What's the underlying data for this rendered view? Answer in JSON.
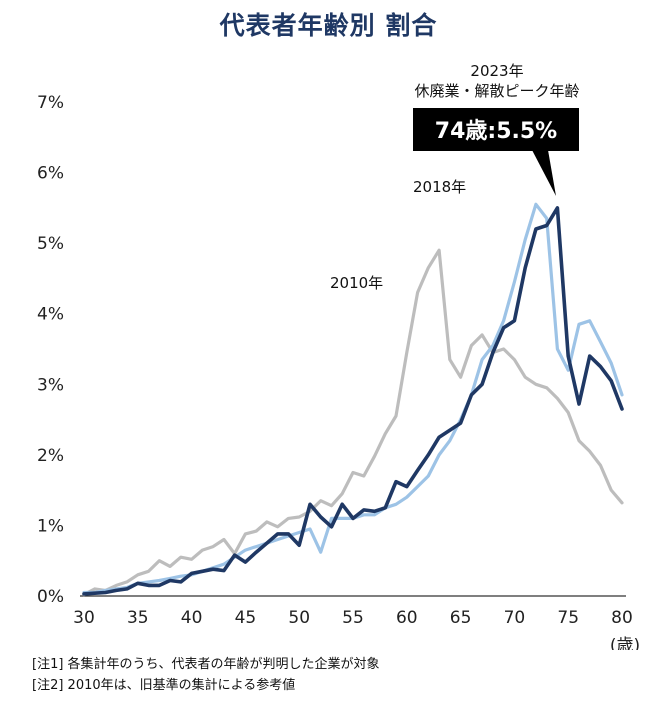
{
  "title": "代表者年齢別  割合",
  "chart_data": {
    "type": "line",
    "title": "代表者年齢別  割合",
    "xlabel": "(歳)",
    "ylabel": "",
    "xlim": [
      30,
      80
    ],
    "ylim": [
      0,
      7
    ],
    "x_ticks": [
      "30",
      "35",
      "40",
      "45",
      "50",
      "55",
      "60",
      "65",
      "70",
      "75",
      "80"
    ],
    "y_ticks": [
      "0%",
      "1%",
      "2%",
      "3%",
      "4%",
      "5%",
      "6%",
      "7%"
    ],
    "x": [
      30,
      31,
      32,
      33,
      34,
      35,
      36,
      37,
      38,
      39,
      40,
      41,
      42,
      43,
      44,
      45,
      46,
      47,
      48,
      49,
      50,
      51,
      52,
      53,
      54,
      55,
      56,
      57,
      58,
      59,
      60,
      61,
      62,
      63,
      64,
      65,
      66,
      67,
      68,
      69,
      70,
      71,
      72,
      73,
      74,
      75,
      76,
      77,
      78,
      79,
      80
    ],
    "series": [
      {
        "name": "2010年",
        "color": "#bdbdbd",
        "values": [
          0.02,
          0.1,
          0.08,
          0.15,
          0.2,
          0.3,
          0.35,
          0.5,
          0.42,
          0.55,
          0.52,
          0.65,
          0.7,
          0.8,
          0.6,
          0.88,
          0.92,
          1.05,
          0.98,
          1.1,
          1.12,
          1.2,
          1.35,
          1.28,
          1.45,
          1.75,
          1.7,
          1.98,
          2.3,
          2.55,
          3.45,
          4.3,
          4.65,
          4.9,
          3.35,
          3.1,
          3.55,
          3.7,
          3.45,
          3.5,
          3.35,
          3.1,
          3.0,
          2.95,
          2.8,
          2.6,
          2.2,
          2.05,
          1.85,
          1.5,
          1.32
        ]
      },
      {
        "name": "2018年",
        "color": "#9dc3e6",
        "values": [
          0.05,
          0.05,
          0.08,
          0.1,
          0.12,
          0.18,
          0.2,
          0.22,
          0.25,
          0.28,
          0.3,
          0.35,
          0.4,
          0.45,
          0.55,
          0.65,
          0.7,
          0.75,
          0.8,
          0.85,
          0.9,
          0.95,
          0.62,
          1.1,
          1.1,
          1.1,
          1.15,
          1.15,
          1.25,
          1.3,
          1.4,
          1.55,
          1.7,
          2.0,
          2.2,
          2.5,
          2.85,
          3.35,
          3.55,
          3.9,
          4.45,
          5.05,
          5.55,
          5.35,
          3.5,
          3.2,
          3.85,
          3.9,
          3.6,
          3.3,
          2.85
        ]
      },
      {
        "name": "2023年",
        "color": "#1f3864",
        "values": [
          0.03,
          0.04,
          0.05,
          0.08,
          0.1,
          0.18,
          0.15,
          0.15,
          0.22,
          0.2,
          0.32,
          0.35,
          0.38,
          0.36,
          0.58,
          0.48,
          0.62,
          0.75,
          0.88,
          0.88,
          0.72,
          1.3,
          1.12,
          0.98,
          1.3,
          1.1,
          1.22,
          1.2,
          1.25,
          1.62,
          1.55,
          1.78,
          2.0,
          2.25,
          2.35,
          2.45,
          2.85,
          3.0,
          3.45,
          3.8,
          3.9,
          4.65,
          5.2,
          5.25,
          5.5,
          3.4,
          2.72,
          3.4,
          3.25,
          3.05,
          2.65
        ]
      }
    ],
    "annotations": {
      "label_2010": "2010年",
      "label_2018": "2018年",
      "label_2023_year": "2023年",
      "label_2023_desc": "休廃業・解散ピーク年齢",
      "callout": "74歳:5.5%",
      "callout_x": 74,
      "callout_y": 5.5
    },
    "grid": false,
    "legend": "none"
  },
  "notes": [
    "[注1] 各集計年のうち、代表者の年齢が判明した企業が対象",
    "[注2] 2010年は、旧基準の集計による参考値"
  ]
}
